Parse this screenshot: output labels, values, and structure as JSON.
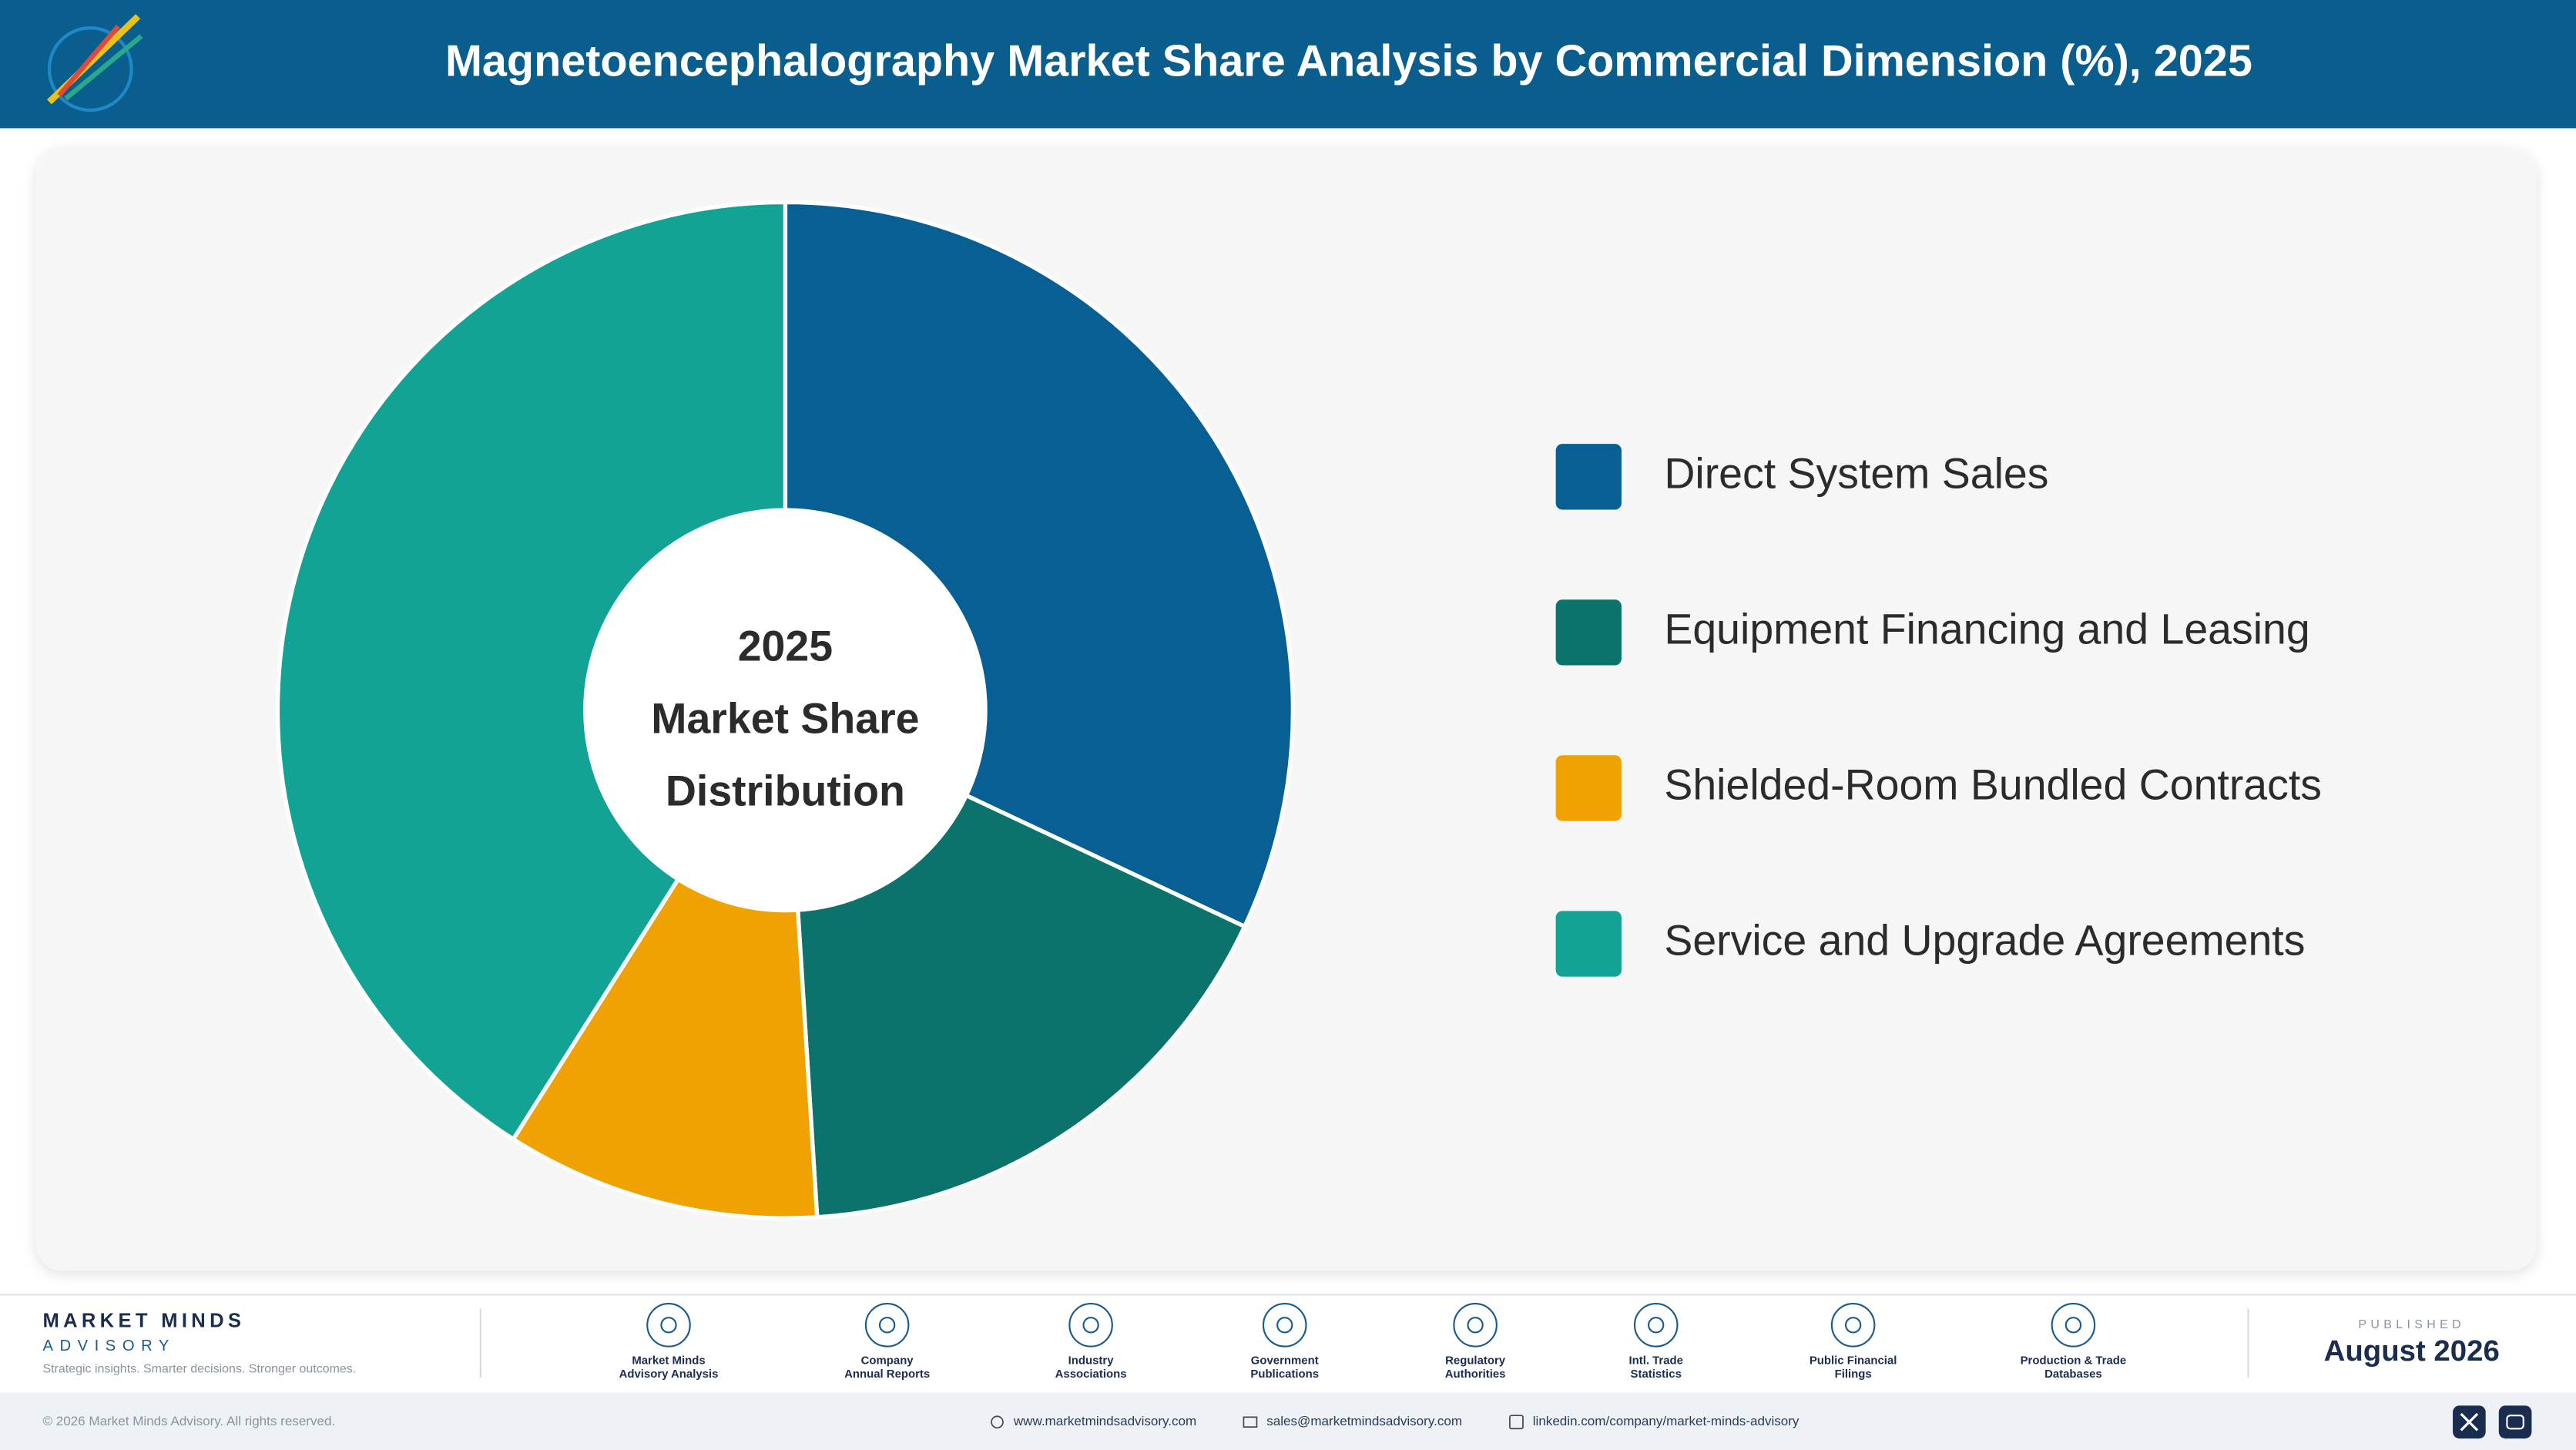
{
  "header": {
    "title": "Magnetoencephalography Market Share Analysis by Commercial Dimension (%), 2025"
  },
  "chart_data": {
    "type": "donut",
    "center_label": [
      "2025",
      "Market Share",
      "Distribution"
    ],
    "categories": [
      "Direct System Sales",
      "Equipment Financing and Leasing",
      "Shielded-Room Bundled Contracts",
      "Service and Upgrade Agreements"
    ],
    "values": [
      32,
      17,
      10,
      41
    ],
    "colors": [
      "#085f93",
      "#0b736c",
      "#f0a202",
      "#13a394"
    ],
    "legend": "right"
  },
  "footer": {
    "brand": "MARKET MINDS",
    "brand_sub": "ADVISORY",
    "tagline": "Strategic insights. Smarter decisions. Stronger outcomes.",
    "sources": [
      [
        "Market Minds",
        "Advisory Analysis"
      ],
      [
        "Company",
        "Annual Reports"
      ],
      [
        "Industry",
        "Associations"
      ],
      [
        "Government",
        "Publications"
      ],
      [
        "Regulatory",
        "Authorities"
      ],
      [
        "Intl. Trade",
        "Statistics"
      ],
      [
        "Public Financial",
        "Filings"
      ],
      [
        "Production & Trade",
        "Databases"
      ]
    ],
    "published_label": "PUBLISHED",
    "published": "August 2026",
    "copyright": "© 2026 Market Minds Advisory. All rights reserved.",
    "website": "www.marketmindsadvisory.com",
    "email": "sales@marketmindsadvisory.com",
    "linkedin": "linkedin.com/company/market-minds-advisory"
  }
}
